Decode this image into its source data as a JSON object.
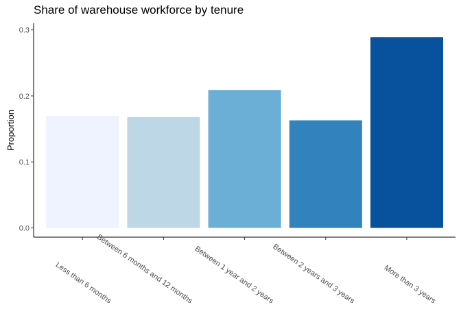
{
  "chart_data": {
    "type": "bar",
    "title": "Share of warehouse workforce by tenure",
    "xlabel": "",
    "ylabel": "Proportion",
    "categories": [
      "Less than 6 months",
      "Between 6 months and 12 months",
      "Between 1 year and 2 years",
      "Between 2 years and 3 years",
      "More than 3 years"
    ],
    "values": [
      0.17,
      0.168,
      0.209,
      0.163,
      0.289
    ],
    "colors": [
      "#eff3ff",
      "#bdd7e7",
      "#6baed6",
      "#3182bd",
      "#08519c"
    ],
    "yticks": [
      "0.0",
      "0.1",
      "0.2",
      "0.3"
    ],
    "ylim": [
      -0.014,
      0.31
    ],
    "grid": false,
    "legend": "none"
  }
}
